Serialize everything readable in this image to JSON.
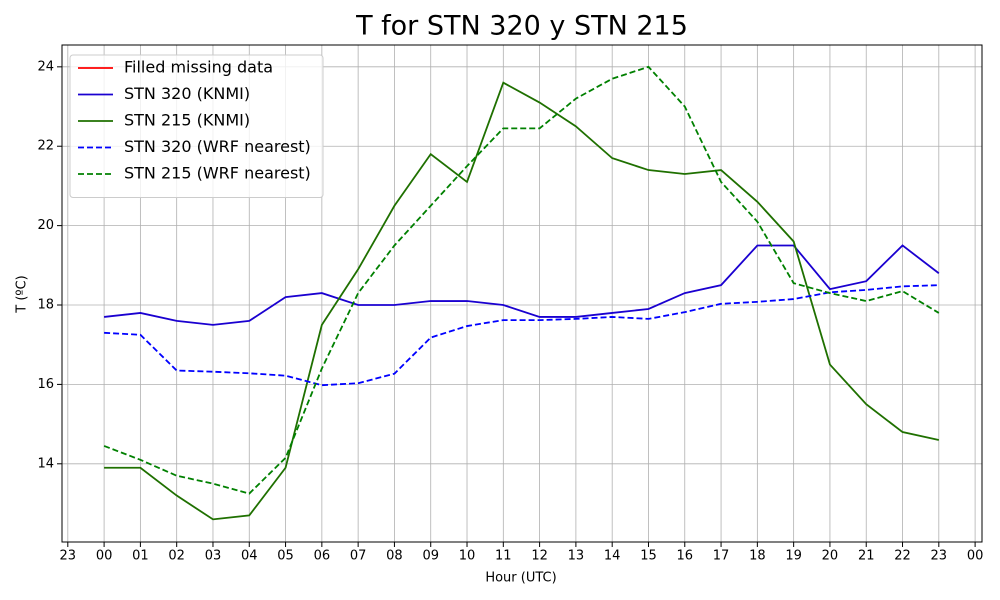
{
  "chart_data": {
    "type": "line",
    "title": "T for STN 320 y STN 215",
    "xlabel": "Hour (UTC)",
    "ylabel": "T (ºC)",
    "x": [
      0,
      1,
      2,
      3,
      4,
      5,
      6,
      7,
      8,
      9,
      10,
      11,
      12,
      13,
      14,
      15,
      16,
      17,
      18,
      19,
      20,
      21,
      22,
      23
    ],
    "xlim": [
      -1.16,
      24.19
    ],
    "xticks": [
      {
        "value": -1,
        "label": "23"
      },
      {
        "value": 0,
        "label": "00"
      },
      {
        "value": 1,
        "label": "01"
      },
      {
        "value": 2,
        "label": "02"
      },
      {
        "value": 3,
        "label": "03"
      },
      {
        "value": 4,
        "label": "04"
      },
      {
        "value": 5,
        "label": "05"
      },
      {
        "value": 6,
        "label": "06"
      },
      {
        "value": 7,
        "label": "07"
      },
      {
        "value": 8,
        "label": "08"
      },
      {
        "value": 9,
        "label": "09"
      },
      10,
      11,
      12,
      13,
      14,
      15,
      16,
      17,
      18,
      19,
      20,
      21,
      22,
      23,
      {
        "value": 24,
        "label": "00"
      }
    ],
    "ylim": [
      12.03,
      24.55
    ],
    "yticks": [
      14,
      16,
      18,
      20,
      22,
      24
    ],
    "grid": true,
    "legend": "upper left",
    "series": [
      {
        "name": "Filled missing data",
        "color": "#ff0000",
        "style": "solid",
        "values": [
          null,
          null,
          null,
          null,
          null,
          null,
          null,
          null,
          null,
          null,
          null,
          null,
          null,
          null,
          null,
          null,
          null,
          null,
          null,
          null,
          null,
          null,
          null,
          null
        ]
      },
      {
        "name": "STN 320 (KNMI)",
        "color": "#1a00d0",
        "style": "solid",
        "values": [
          17.7,
          17.8,
          17.6,
          17.5,
          17.6,
          18.2,
          18.3,
          18.0,
          18.0,
          18.1,
          18.1,
          18.0,
          17.7,
          17.7,
          17.8,
          17.9,
          18.3,
          18.5,
          19.5,
          19.5,
          18.4,
          18.6,
          19.5,
          18.8
        ]
      },
      {
        "name": "STN 215 (KNMI)",
        "color": "#1f7000",
        "style": "solid",
        "values": [
          13.9,
          13.9,
          13.2,
          12.6,
          12.7,
          13.9,
          17.5,
          18.9,
          20.5,
          21.8,
          21.1,
          23.6,
          23.1,
          22.5,
          21.7,
          21.4,
          21.3,
          21.4,
          20.6,
          19.6,
          16.5,
          15.5,
          14.8,
          14.6
        ]
      },
      {
        "name": "STN 320 (WRF nearest)",
        "color": "#0000ff",
        "style": "dashed",
        "values": [
          17.3,
          17.25,
          16.35,
          16.32,
          16.28,
          16.22,
          15.98,
          16.03,
          16.27,
          17.18,
          17.47,
          17.62,
          17.62,
          17.65,
          17.7,
          17.65,
          17.82,
          18.03,
          18.08,
          18.15,
          18.32,
          18.38,
          18.47,
          18.5
        ]
      },
      {
        "name": "STN 215 (WRF nearest)",
        "color": "#008000",
        "style": "dashed",
        "values": [
          14.45,
          14.1,
          13.7,
          13.5,
          13.25,
          14.15,
          16.4,
          18.3,
          19.5,
          20.5,
          21.5,
          22.45,
          22.45,
          23.2,
          23.7,
          24.0,
          23.0,
          21.1,
          20.1,
          18.55,
          18.3,
          18.1,
          18.35,
          17.8
        ]
      }
    ]
  }
}
